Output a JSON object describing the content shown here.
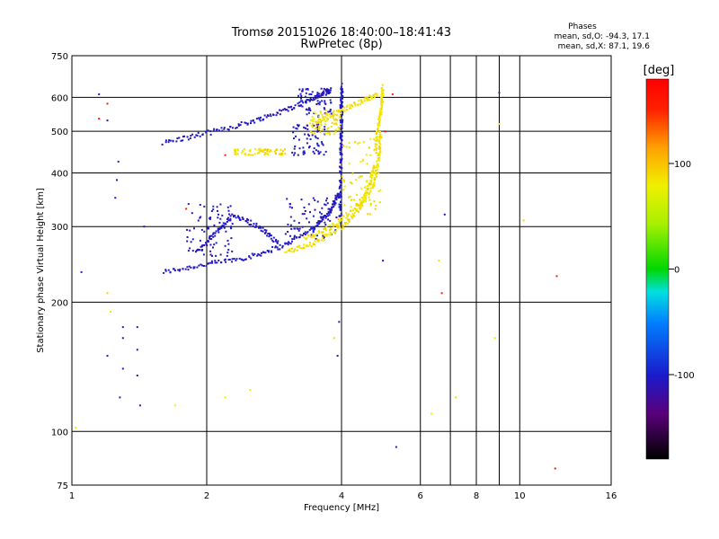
{
  "chart_data": {
    "type": "scatter",
    "title": "Tromsø 20151026 18:40:00–18:41:43",
    "subtitle": "RwPretec (8p)",
    "xlabel": "Frequency [MHz]",
    "ylabel": "Stationary phase Virtual Height [km]",
    "x_scale": "log",
    "y_scale": "log",
    "xlim": [
      1,
      16
    ],
    "ylim": [
      75,
      750
    ],
    "x_ticks": [
      1,
      2,
      4,
      6,
      8,
      10,
      16
    ],
    "x_minor_ticks": [
      7,
      9
    ],
    "x_tick_labels": [
      "1",
      "2",
      "4",
      "6",
      "8",
      "10",
      "16"
    ],
    "y_ticks": [
      75,
      100,
      200,
      300,
      400,
      500,
      600,
      750
    ],
    "y_tick_labels": [
      "75",
      "100",
      "200",
      "300",
      "400",
      "500",
      "600",
      "750"
    ],
    "grid": true,
    "info": {
      "heading": "Phases",
      "line_o": "mean, sd,O: -94.3, 17.1",
      "line_x": "mean, sd,X:  87.1, 19.6"
    },
    "colorbar": {
      "label": "[deg]",
      "range": [
        -180,
        180
      ],
      "ticks": [
        100,
        0,
        -100
      ],
      "tick_labels": [
        "100",
        "0",
        "-100"
      ]
    },
    "series": [
      {
        "mode": "O",
        "mean_phase": -94.3,
        "sd_phase": 17.1,
        "color_phase": -105,
        "traces": [
          {
            "f": [
              1.6,
              2.0,
              2.5,
              3.0,
              3.5,
              3.8,
              3.95
            ],
            "h": [
              235,
              245,
              255,
              272,
              300,
              330,
              360
            ]
          },
          {
            "f": [
              1.6,
              2.0,
              2.5,
              3.0,
              3.5,
              3.8
            ],
            "h": [
              470,
              495,
              525,
              560,
              600,
              625
            ]
          },
          {
            "f": [
              3.97,
              3.98,
              3.99,
              4.0,
              4.0,
              4.01
            ],
            "h": [
              300,
              380,
              450,
              520,
              580,
              640
            ]
          },
          {
            "f": [
              1.9,
              2.1,
              2.3,
              2.6,
              2.9
            ],
            "h": [
              260,
              290,
              320,
              300,
              275
            ]
          }
        ],
        "clouds": [
          {
            "f": [
              1.8,
              2.3
            ],
            "h": [
              255,
              340
            ]
          },
          {
            "f": [
              3.0,
              3.9
            ],
            "h": [
              280,
              350
            ]
          },
          {
            "f": [
              3.1,
              3.7
            ],
            "h": [
              440,
              520
            ]
          },
          {
            "f": [
              3.2,
              3.8
            ],
            "h": [
              540,
              630
            ]
          }
        ],
        "scattered": [
          {
            "f": 1.05,
            "h": 235
          },
          {
            "f": 1.15,
            "h": 610
          },
          {
            "f": 1.2,
            "h": 530
          },
          {
            "f": 1.25,
            "h": 350
          },
          {
            "f": 1.27,
            "h": 425
          },
          {
            "f": 1.26,
            "h": 385
          },
          {
            "f": 1.3,
            "h": 175
          },
          {
            "f": 1.3,
            "h": 165
          },
          {
            "f": 1.3,
            "h": 140
          },
          {
            "f": 1.4,
            "h": 175
          },
          {
            "f": 1.4,
            "h": 155
          },
          {
            "f": 1.4,
            "h": 135
          },
          {
            "f": 1.42,
            "h": 115
          },
          {
            "f": 1.28,
            "h": 120
          },
          {
            "f": 1.2,
            "h": 150
          },
          {
            "f": 1.45,
            "h": 300
          },
          {
            "f": 3.95,
            "h": 180
          },
          {
            "f": 3.92,
            "h": 150
          },
          {
            "f": 4.95,
            "h": 250
          },
          {
            "f": 5.3,
            "h": 92
          },
          {
            "f": 6.8,
            "h": 320
          },
          {
            "f": 9.0,
            "h": 615
          }
        ]
      },
      {
        "mode": "X",
        "mean_phase": 87.1,
        "sd_phase": 19.6,
        "color_phase": 85,
        "traces": [
          {
            "f": [
              3.0,
              3.5,
              4.0,
              4.4,
              4.6,
              4.75
            ],
            "h": [
              262,
              275,
              300,
              330,
              370,
              420
            ]
          },
          {
            "f": [
              3.3,
              3.8,
              4.3,
              4.7,
              4.85,
              4.9
            ],
            "h": [
              280,
              300,
              330,
              370,
              430,
              500
            ]
          },
          {
            "f": [
              3.5,
              4.0,
              4.5,
              4.8
            ],
            "h": [
              520,
              560,
              590,
              610
            ]
          },
          {
            "f": [
              4.75,
              4.85,
              4.92,
              4.95
            ],
            "h": [
              450,
              520,
              580,
              640
            ]
          }
        ],
        "clouds": [
          {
            "f": [
              2.3,
              3.0
            ],
            "h": [
              440,
              455
            ]
          },
          {
            "f": [
              4.0,
              4.9
            ],
            "h": [
              320,
              480
            ]
          },
          {
            "f": [
              3.4,
              4.0
            ],
            "h": [
              490,
              560
            ]
          }
        ],
        "scattered": [
          {
            "f": 1.2,
            "h": 210
          },
          {
            "f": 1.22,
            "h": 190
          },
          {
            "f": 1.7,
            "h": 115
          },
          {
            "f": 2.2,
            "h": 120
          },
          {
            "f": 2.5,
            "h": 125
          },
          {
            "f": 3.85,
            "h": 165
          },
          {
            "f": 6.35,
            "h": 110
          },
          {
            "f": 6.6,
            "h": 250
          },
          {
            "f": 7.2,
            "h": 120
          },
          {
            "f": 8.8,
            "h": 165
          },
          {
            "f": 9.0,
            "h": 520
          },
          {
            "f": 10.2,
            "h": 310
          },
          {
            "f": 1.02,
            "h": 102
          }
        ]
      },
      {
        "mode": "other",
        "color_phase": 160,
        "scattered": [
          {
            "f": 1.15,
            "h": 535
          },
          {
            "f": 1.2,
            "h": 580
          },
          {
            "f": 1.8,
            "h": 330
          },
          {
            "f": 2.2,
            "h": 440
          },
          {
            "f": 5.0,
            "h": 500
          },
          {
            "f": 6.7,
            "h": 210
          },
          {
            "f": 12.0,
            "h": 82
          },
          {
            "f": 12.1,
            "h": 230
          },
          {
            "f": 5.2,
            "h": 610
          }
        ]
      }
    ]
  }
}
